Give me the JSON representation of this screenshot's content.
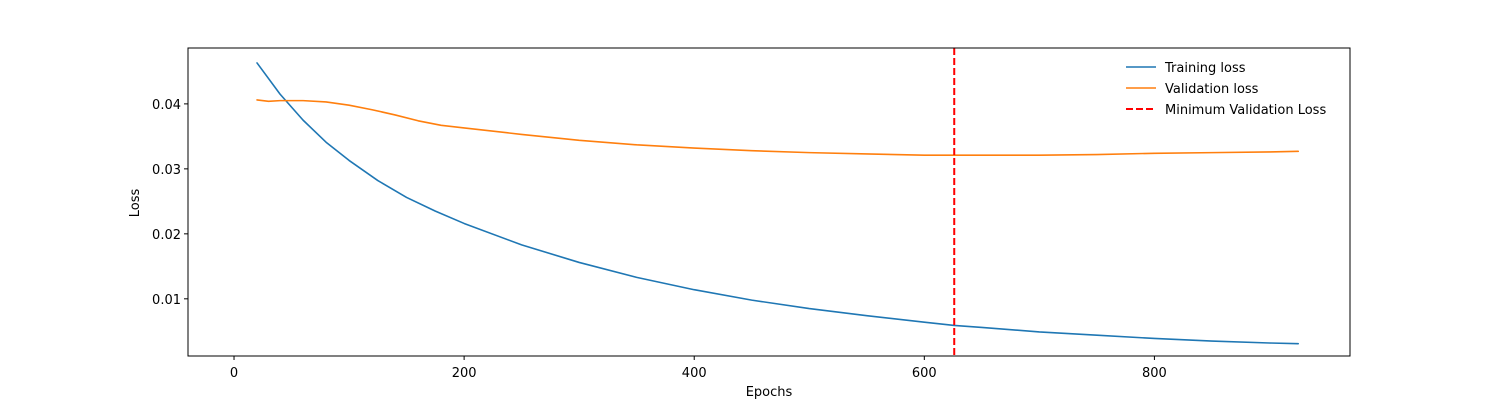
{
  "chart_data": {
    "type": "line",
    "title": "",
    "xlabel": "Epochs",
    "ylabel": "Loss",
    "xlim": [
      -40,
      970
    ],
    "ylim": [
      0.0012,
      0.0486
    ],
    "x_ticks": [
      0,
      200,
      400,
      600,
      800
    ],
    "y_ticks": [
      0.01,
      0.02,
      0.03,
      0.04
    ],
    "grid": false,
    "legend_position": "top-right",
    "series": [
      {
        "name": "Training loss",
        "color": "#1f77b4",
        "style": "solid",
        "x": [
          20,
          40,
          60,
          80,
          100,
          125,
          150,
          175,
          200,
          250,
          300,
          350,
          400,
          450,
          500,
          550,
          600,
          626,
          650,
          700,
          750,
          800,
          850,
          900,
          925
        ],
        "y": [
          0.0463,
          0.0415,
          0.0375,
          0.0341,
          0.0313,
          0.0282,
          0.0256,
          0.0235,
          0.0216,
          0.0183,
          0.0156,
          0.0133,
          0.0114,
          0.0098,
          0.0085,
          0.0074,
          0.0064,
          0.0059,
          0.0056,
          0.0049,
          0.0044,
          0.0039,
          0.0035,
          0.0032,
          0.0031
        ]
      },
      {
        "name": "Validation loss",
        "color": "#ff7f0e",
        "style": "solid",
        "x": [
          20,
          30,
          40,
          60,
          80,
          100,
          120,
          140,
          160,
          180,
          200,
          250,
          300,
          350,
          400,
          450,
          500,
          550,
          600,
          626,
          650,
          700,
          750,
          800,
          850,
          900,
          925
        ],
        "y": [
          0.0406,
          0.0404,
          0.0405,
          0.0405,
          0.0403,
          0.0398,
          0.0391,
          0.0383,
          0.0374,
          0.0367,
          0.0363,
          0.0353,
          0.0344,
          0.0337,
          0.0332,
          0.0328,
          0.0325,
          0.0323,
          0.0321,
          0.0321,
          0.0321,
          0.0321,
          0.0322,
          0.0324,
          0.0325,
          0.0326,
          0.0327
        ]
      },
      {
        "name": "Minimum Validation Loss",
        "color": "#ff0000",
        "style": "dashed",
        "vline_x": 626
      }
    ]
  }
}
